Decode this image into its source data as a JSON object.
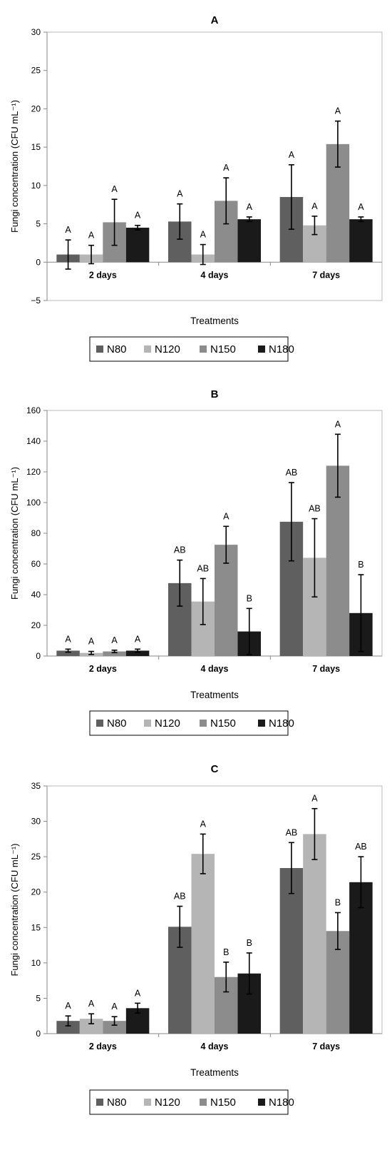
{
  "colors": {
    "N80": "#5f5f5f",
    "N120": "#b5b5b5",
    "N150": "#8c8c8c",
    "N180": "#1a1a1a"
  },
  "chart_data": [
    {
      "type": "bar",
      "title": "A",
      "xlabel": "Treatments",
      "ylabel": "Fungi concentration (CFU mL⁻¹)",
      "ylim": [
        -5,
        30
      ],
      "yticks": [
        "−5",
        "0",
        "5",
        "10",
        "15",
        "20",
        "25",
        "30"
      ],
      "ytick_values": [
        -5,
        0,
        5,
        10,
        15,
        20,
        25,
        30
      ],
      "categories": [
        "2 days",
        "4 days",
        "7 days"
      ],
      "grid": false,
      "legend": "bottom",
      "series": [
        {
          "name": "N80",
          "values": [
            1.0,
            5.3,
            8.5
          ],
          "errors": [
            1.9,
            2.3,
            4.2
          ],
          "labels": [
            "A",
            "A",
            "A"
          ]
        },
        {
          "name": "N120",
          "values": [
            1.0,
            1.0,
            4.8
          ],
          "errors": [
            1.2,
            1.3,
            1.2
          ],
          "labels": [
            "A",
            "A",
            "A"
          ]
        },
        {
          "name": "N150",
          "values": [
            5.2,
            8.0,
            15.4
          ],
          "errors": [
            3.0,
            3.0,
            3.0
          ],
          "labels": [
            "A",
            "A",
            "A"
          ]
        },
        {
          "name": "N180",
          "values": [
            4.5,
            5.6,
            5.6
          ],
          "errors": [
            0.3,
            0.3,
            0.3
          ],
          "labels": [
            "A",
            "A",
            "A"
          ]
        }
      ]
    },
    {
      "type": "bar",
      "title": "B",
      "xlabel": "Treatments",
      "ylabel": "Fungi concentration (CFU mL⁻¹)",
      "ylim": [
        0,
        160
      ],
      "yticks": [
        "0",
        "20",
        "40",
        "60",
        "80",
        "100",
        "120",
        "140",
        "160"
      ],
      "ytick_values": [
        0,
        20,
        40,
        60,
        80,
        100,
        120,
        140,
        160
      ],
      "categories": [
        "2 days",
        "4 days",
        "7 days"
      ],
      "grid": false,
      "legend": "bottom",
      "series": [
        {
          "name": "N80",
          "values": [
            3.5,
            47.5,
            87.5
          ],
          "errors": [
            1.0,
            15.0,
            25.5
          ],
          "labels": [
            "A",
            "AB",
            "AB"
          ]
        },
        {
          "name": "N120",
          "values": [
            2.0,
            35.5,
            64.0
          ],
          "errors": [
            1.0,
            15.0,
            25.5
          ],
          "labels": [
            "A",
            "AB",
            "AB"
          ]
        },
        {
          "name": "N150",
          "values": [
            3.0,
            72.5,
            124.0
          ],
          "errors": [
            0.8,
            12.0,
            20.5
          ],
          "labels": [
            "A",
            "A",
            "A"
          ]
        },
        {
          "name": "N180",
          "values": [
            3.5,
            16.0,
            28.0
          ],
          "errors": [
            1.0,
            15.0,
            25.0
          ],
          "labels": [
            "A",
            "B",
            "B"
          ]
        }
      ]
    },
    {
      "type": "bar",
      "title": "C",
      "xlabel": "Treatments",
      "ylabel": "Fungi concentration (CFU mL⁻¹)",
      "ylim": [
        0,
        35
      ],
      "yticks": [
        "0",
        "5",
        "10",
        "15",
        "20",
        "25",
        "30",
        "35"
      ],
      "ytick_values": [
        0,
        5,
        10,
        15,
        20,
        25,
        30,
        35
      ],
      "categories": [
        "2 days",
        "4 days",
        "7 days"
      ],
      "grid": false,
      "legend": "bottom",
      "series": [
        {
          "name": "N80",
          "values": [
            1.8,
            15.1,
            23.4
          ],
          "errors": [
            0.7,
            2.9,
            3.6
          ],
          "labels": [
            "A",
            "AB",
            "AB"
          ]
        },
        {
          "name": "N120",
          "values": [
            2.1,
            25.4,
            28.2
          ],
          "errors": [
            0.7,
            2.8,
            3.6
          ],
          "labels": [
            "A",
            "A",
            "A"
          ]
        },
        {
          "name": "N150",
          "values": [
            1.8,
            8.0,
            14.5
          ],
          "errors": [
            0.6,
            2.1,
            2.6
          ],
          "labels": [
            "A",
            "B",
            "B"
          ]
        },
        {
          "name": "N180",
          "values": [
            3.6,
            8.5,
            21.4
          ],
          "errors": [
            0.7,
            2.9,
            3.6
          ],
          "labels": [
            "A",
            "B",
            "AB"
          ]
        }
      ]
    }
  ]
}
